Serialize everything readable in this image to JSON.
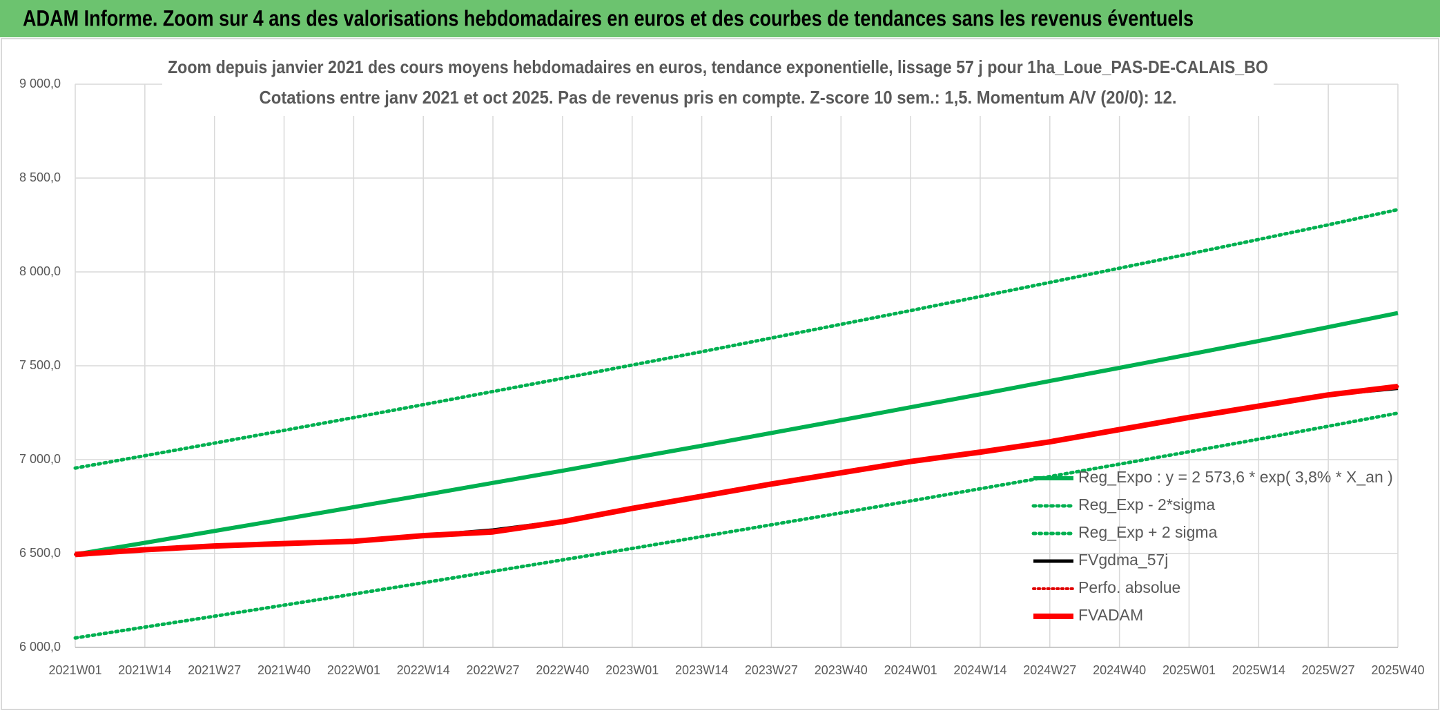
{
  "header": {
    "title": "ADAM Informe. Zoom sur 4 ans des valorisations hebdomadaires en euros et des courbes de tendances sans les revenus éventuels"
  },
  "chart_data": {
    "type": "line",
    "title": "Zoom depuis janvier 2021 des cours moyens hebdomadaires en euros, tendance exponentielle, lissage 57 j pour 1ha_Loue_PAS-DE-CALAIS_BO",
    "subtitle": "Cotations entre janv 2021 et oct 2025. Pas de revenus pris en compte. Z-score 10 sem.: 1,5. Momentum A/V (20/0): 12.",
    "categories": [
      "2021W01",
      "2021W14",
      "2021W27",
      "2021W40",
      "2022W01",
      "2022W14",
      "2022W27",
      "2022W40",
      "2023W01",
      "2023W14",
      "2023W27",
      "2023W40",
      "2024W01",
      "2024W14",
      "2024W27",
      "2024W40",
      "2025W01",
      "2025W14",
      "2025W27",
      "2025W40"
    ],
    "ylim": [
      6000,
      9000
    ],
    "yticks": [
      {
        "value": 6000,
        "label": "6 000,0"
      },
      {
        "value": 6500,
        "label": "6 500,0"
      },
      {
        "value": 7000,
        "label": "7 000,0"
      },
      {
        "value": 7500,
        "label": "7 500,0"
      },
      {
        "value": 8000,
        "label": "8 000,0"
      },
      {
        "value": 8500,
        "label": "8 500,0"
      },
      {
        "value": 9000,
        "label": "9 000,0"
      }
    ],
    "grid": true,
    "legend": "lower right",
    "series": [
      {
        "name": "Reg_Expo : y = 2 573,6 * exp( 3,8% *  X_an )",
        "color": "#00b050",
        "style": "solid",
        "linewidth": 6,
        "values": [
          6495,
          6557,
          6620,
          6683,
          6747,
          6811,
          6876,
          6941,
          7008,
          7074,
          7142,
          7210,
          7279,
          7348,
          7419,
          7489,
          7560,
          7632,
          7706,
          7781
        ]
      },
      {
        "name": "Reg_Exp - 2*sigma",
        "color": "#00b050",
        "style": "dotted",
        "linewidth": 5,
        "values": [
          6050,
          6108,
          6166,
          6225,
          6284,
          6344,
          6405,
          6466,
          6527,
          6590,
          6653,
          6716,
          6780,
          6845,
          6910,
          6976,
          7042,
          7109,
          7178,
          7248
        ]
      },
      {
        "name": "Reg_Exp + 2 sigma",
        "color": "#00b050",
        "style": "dotted",
        "linewidth": 5,
        "values": [
          6955,
          7021,
          7088,
          7156,
          7224,
          7293,
          7363,
          7433,
          7504,
          7575,
          7648,
          7721,
          7794,
          7869,
          7944,
          8020,
          8096,
          8173,
          8251,
          8332
        ]
      },
      {
        "name": "FVgdma_57j",
        "color": "#000000",
        "style": "solid",
        "linewidth": 5,
        "values": [
          6495,
          6520,
          6540,
          6553,
          6565,
          6595,
          6625,
          6672,
          6740,
          6805,
          6870,
          6930,
          6990,
          7040,
          7095,
          7160,
          7225,
          7285,
          7345,
          7380
        ]
      },
      {
        "name": "Perfo. absolue",
        "color": "#e00000",
        "style": "dotted",
        "linewidth": 4,
        "values": [
          6495,
          6520,
          6540,
          6553,
          6565,
          6595,
          6615,
          6670,
          6740,
          6805,
          6870,
          6930,
          6990,
          7040,
          7095,
          7160,
          7225,
          7285,
          7345,
          7390
        ]
      },
      {
        "name": "FVADAM",
        "color": "#ff0000",
        "style": "solid",
        "linewidth": 8,
        "values": [
          6495,
          6520,
          6540,
          6553,
          6565,
          6595,
          6615,
          6670,
          6740,
          6805,
          6870,
          6930,
          6990,
          7040,
          7095,
          7160,
          7225,
          7285,
          7345,
          7390
        ]
      }
    ]
  }
}
